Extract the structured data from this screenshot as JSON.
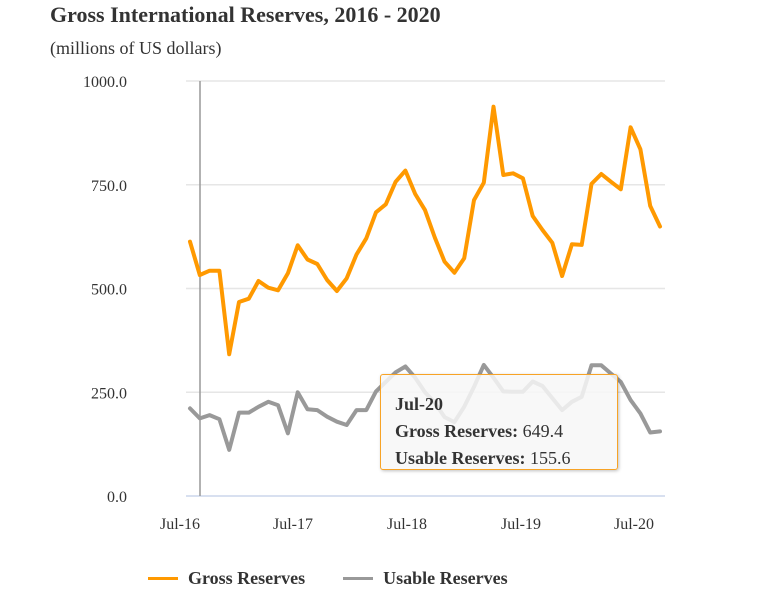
{
  "colors": {
    "gross": "#ff9900",
    "usable": "#999999",
    "tooltip_border": "#f7a326",
    "axis_line": "#ccd6eb",
    "crosshair": "#999999"
  },
  "chart_data": {
    "type": "line",
    "title": "Gross International Reserves, 2016 - 2020",
    "subtitle": "(millions of US dollars)",
    "xlabel": "",
    "ylabel": "",
    "ylim": [
      0,
      1000
    ],
    "yticks": [
      "0.0",
      "250.0",
      "500.0",
      "750.0",
      "1000.0"
    ],
    "ytick_values": [
      0,
      250,
      500,
      750,
      1000
    ],
    "xtick_labels": [
      "Jul-16",
      "Jul-17",
      "Jul-18",
      "Jul-19",
      "Jul-20"
    ],
    "grid": true,
    "legend_position": "bottom",
    "x": [
      "Jul-16",
      "Aug-16",
      "Sep-16",
      "Oct-16",
      "Nov-16",
      "Dec-16",
      "Jan-17",
      "Feb-17",
      "Mar-17",
      "Apr-17",
      "May-17",
      "Jun-17",
      "Jul-17",
      "Aug-17",
      "Sep-17",
      "Oct-17",
      "Nov-17",
      "Dec-17",
      "Jan-18",
      "Feb-18",
      "Mar-18",
      "Apr-18",
      "May-18",
      "Jun-18",
      "Jul-18",
      "Aug-18",
      "Sep-18",
      "Oct-18",
      "Nov-18",
      "Dec-18",
      "Jan-19",
      "Feb-19",
      "Mar-19",
      "Apr-19",
      "May-19",
      "Jun-19",
      "Jul-19",
      "Aug-19",
      "Sep-19",
      "Oct-19",
      "Nov-19",
      "Dec-19",
      "Jan-20",
      "Feb-20",
      "Mar-20",
      "Apr-20",
      "May-20",
      "Jun-20",
      "Jul-20"
    ],
    "series": [
      {
        "name": "Gross Reserves",
        "color": "#ff9900",
        "values": [
          612.8,
          532.5,
          542.9,
          542.9,
          341.4,
          467.5,
          475.4,
          518.0,
          502.0,
          495.7,
          536.6,
          604.0,
          570.0,
          559.0,
          520.5,
          494.0,
          524.6,
          582.0,
          621.0,
          683.6,
          703.0,
          757.0,
          784.0,
          727.7,
          689.0,
          623.0,
          564.6,
          538.0,
          572.8,
          713.0,
          755.0,
          938.0,
          773.5,
          777.6,
          765.5,
          674.7,
          641.0,
          610.0,
          530.0,
          606.5,
          605.0,
          752.0,
          776.0,
          757.0,
          739.0,
          888.5,
          835.4,
          699.0,
          649.4
        ]
      },
      {
        "name": "Usable Reserves",
        "color": "#999999",
        "values": [
          211,
          187,
          195,
          185,
          111,
          201,
          201,
          215,
          227,
          218.5,
          151,
          250,
          209,
          207,
          191,
          179,
          171,
          207,
          207,
          252,
          275,
          298,
          312,
          285,
          250,
          225,
          190,
          178,
          215,
          263,
          316,
          285,
          252,
          251,
          251,
          276,
          265,
          236,
          207,
          227,
          239,
          315,
          315,
          295,
          275,
          231,
          199,
          153,
          155.6
        ]
      }
    ],
    "hovered_index": 48
  },
  "tooltip": {
    "date": "Jul-20",
    "gross_label": "Gross Reserves:",
    "gross_value": "649.4",
    "usable_label": "Usable Reserves:",
    "usable_value": "155.6"
  },
  "legend": [
    {
      "label": "Gross Reserves",
      "color": "#ff9900"
    },
    {
      "label": "Usable Reserves",
      "color": "#999999"
    }
  ]
}
